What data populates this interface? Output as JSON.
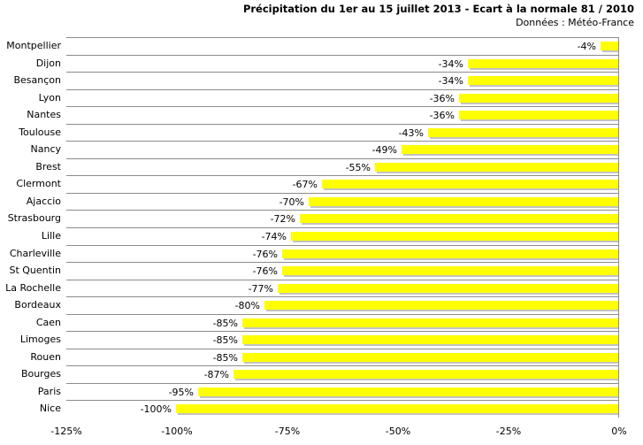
{
  "header": {
    "title": "Précipitation du 1er au 15 juillet 2013 - Ecart à la normale 81 / 2010",
    "subtitle": "Données : Météo-France"
  },
  "chart_data": {
    "type": "bar",
    "orientation": "horizontal",
    "title": "Précipitation du 1er au 15 juillet 2013 - Ecart à la normale 81 / 2010",
    "subtitle": "Données : Météo-France",
    "categories": [
      "Montpellier",
      "Dijon",
      "Besançon",
      "Lyon",
      "Nantes",
      "Toulouse",
      "Nancy",
      "Brest",
      "Clermont",
      "Ajaccio",
      "Strasbourg",
      "Lille",
      "Charleville",
      "St Quentin",
      "La Rochelle",
      "Bordeaux",
      "Caen",
      "Limoges",
      "Rouen",
      "Bourges",
      "Paris",
      "Nice"
    ],
    "values": [
      -4,
      -34,
      -34,
      -36,
      -36,
      -43,
      -49,
      -55,
      -67,
      -70,
      -72,
      -74,
      -76,
      -76,
      -77,
      -80,
      -85,
      -85,
      -85,
      -87,
      -95,
      -100
    ],
    "data_labels": [
      "-4%",
      "-34%",
      "-34%",
      "-36%",
      "-36%",
      "-43%",
      "-49%",
      "-55%",
      "-67%",
      "-70%",
      "-72%",
      "-74%",
      "-76%",
      "-76%",
      "-77%",
      "-80%",
      "-85%",
      "-85%",
      "-85%",
      "-87%",
      "-95%",
      "-100%"
    ],
    "x_ticks": [
      -125,
      -100,
      -75,
      -50,
      -25,
      0
    ],
    "x_tick_labels": [
      "-125%",
      "-100%",
      "-75%",
      "-50%",
      "-25%",
      "0%"
    ],
    "xlim": [
      -125,
      0
    ],
    "xlabel": "",
    "ylabel": "",
    "bar_color": "#FFFF00",
    "bar_shadow_color": "#c3c3c3",
    "gridline_color": "#8c8c8c",
    "grid": "horizontal category separators only",
    "legend": "none",
    "bars_anchor": "right (0%)"
  }
}
